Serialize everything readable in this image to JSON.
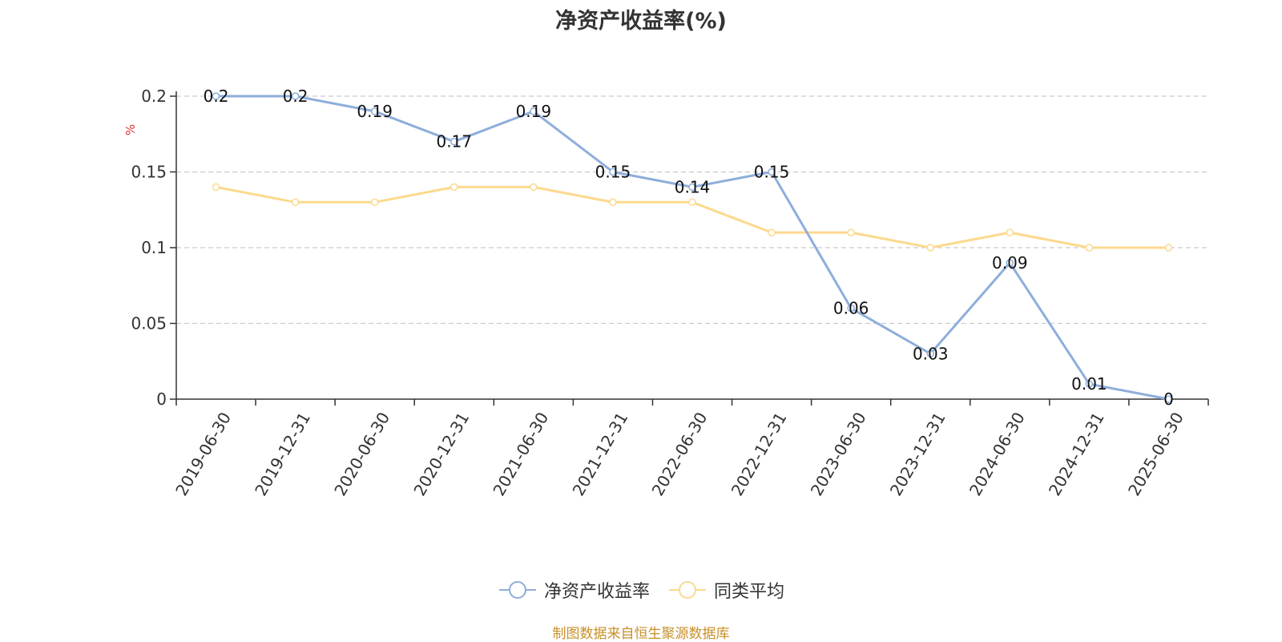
{
  "chart_data": {
    "type": "line",
    "title": "净资产收益率(%)",
    "ylabel": "%",
    "xlabel": "",
    "categories": [
      "2019-06-30",
      "2019-12-31",
      "2020-06-30",
      "2020-12-31",
      "2021-06-30",
      "2021-12-31",
      "2022-06-30",
      "2022-12-31",
      "2023-06-30",
      "2023-12-31",
      "2024-06-30",
      "2024-12-31",
      "2025-06-30"
    ],
    "series": [
      {
        "name": "净资产收益率",
        "color": "#8eaedb",
        "show_labels": true,
        "values": [
          0.2,
          0.2,
          0.19,
          0.17,
          0.19,
          0.15,
          0.14,
          0.15,
          0.06,
          0.03,
          0.09,
          0.01,
          0
        ]
      },
      {
        "name": "同类平均",
        "color": "#fcd98e",
        "show_labels": false,
        "values": [
          0.14,
          0.13,
          0.13,
          0.14,
          0.14,
          0.13,
          0.13,
          0.11,
          0.11,
          0.1,
          0.11,
          0.1,
          0.1
        ]
      }
    ],
    "ylim": [
      0,
      0.2
    ],
    "yticks": [
      "0",
      "0.05",
      "0.1",
      "0.15",
      "0.2"
    ],
    "grid": true,
    "legend_position": "bottom"
  },
  "legend": {
    "items": [
      "净资产收益率",
      "同类平均"
    ]
  },
  "source_text": "制图数据来自恒生聚源数据库"
}
